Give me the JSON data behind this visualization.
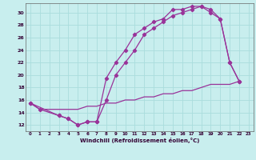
{
  "xlabel": "Windchill (Refroidissement éolien,°C)",
  "bg_color": "#c8eeee",
  "line_color": "#993399",
  "grid_color": "#aadddd",
  "xlim": [
    -0.5,
    23.5
  ],
  "ylim": [
    11.0,
    31.5
  ],
  "yticks": [
    12,
    14,
    16,
    18,
    20,
    22,
    24,
    26,
    28,
    30
  ],
  "xticks": [
    0,
    1,
    2,
    3,
    4,
    5,
    6,
    7,
    8,
    9,
    10,
    11,
    12,
    13,
    14,
    15,
    16,
    17,
    18,
    19,
    20,
    21,
    22,
    23
  ],
  "line1_x": [
    0,
    1,
    3,
    4,
    5,
    6,
    7,
    8,
    9,
    10,
    11,
    12,
    13,
    14,
    15,
    16,
    17,
    18,
    19,
    20,
    21,
    22
  ],
  "line1_y": [
    15.5,
    14.5,
    13.5,
    13.0,
    12.0,
    12.5,
    12.5,
    19.5,
    22.0,
    24.0,
    26.5,
    27.5,
    28.5,
    29.0,
    30.5,
    30.5,
    31.0,
    31.0,
    30.5,
    29.0,
    22.0,
    19.0
  ],
  "line2_x": [
    0,
    3,
    4,
    5,
    6,
    7,
    8,
    9,
    10,
    11,
    12,
    13,
    14,
    15,
    16,
    17,
    18,
    19,
    20,
    21,
    22
  ],
  "line2_y": [
    15.5,
    13.5,
    13.0,
    12.0,
    12.5,
    12.5,
    16.0,
    20.0,
    22.0,
    24.0,
    26.5,
    27.5,
    28.5,
    29.5,
    30.0,
    30.5,
    31.0,
    30.0,
    29.0,
    22.0,
    19.0
  ],
  "line3_x": [
    0,
    1,
    2,
    3,
    4,
    5,
    6,
    7,
    8,
    9,
    10,
    11,
    12,
    13,
    14,
    15,
    16,
    17,
    18,
    19,
    20,
    21,
    22
  ],
  "line3_y": [
    15.5,
    14.5,
    14.5,
    14.5,
    14.5,
    14.5,
    15.0,
    15.0,
    15.5,
    15.5,
    16.0,
    16.0,
    16.5,
    16.5,
    17.0,
    17.0,
    17.5,
    17.5,
    18.0,
    18.5,
    18.5,
    18.5,
    19.0
  ]
}
